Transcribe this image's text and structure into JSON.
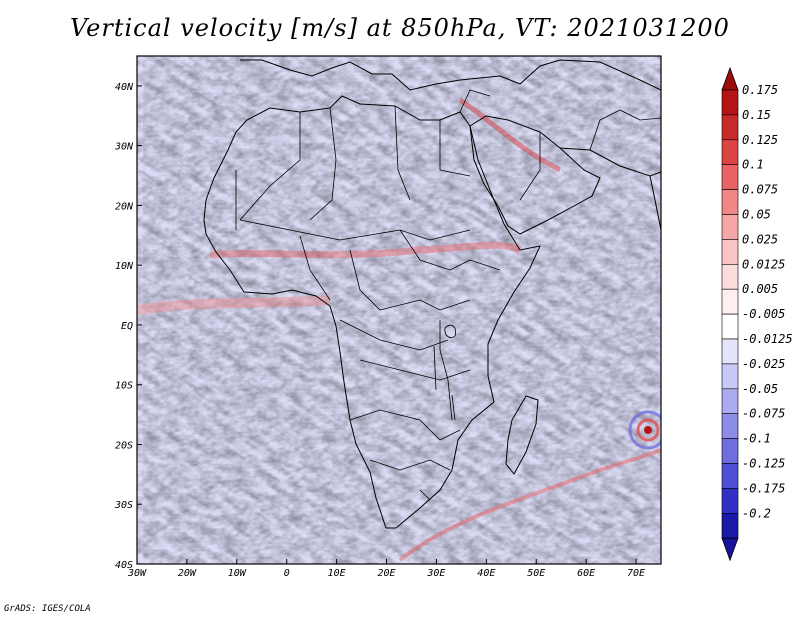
{
  "title": "Vertical velocity [m/s] at 850hPa, VT: 2021031200",
  "credit": "GrADS: IGES/COLA",
  "map": {
    "variable": "Vertical velocity",
    "units": "m/s",
    "level": "850hPa",
    "valid_time": "2021031200",
    "lon_range": [
      -30,
      75
    ],
    "lat_range": [
      -40,
      45
    ],
    "lon_ticks": [
      {
        "value": -30,
        "label": "30W"
      },
      {
        "value": -20,
        "label": "20W"
      },
      {
        "value": -10,
        "label": "10W"
      },
      {
        "value": 0,
        "label": "0"
      },
      {
        "value": 10,
        "label": "10E"
      },
      {
        "value": 20,
        "label": "20E"
      },
      {
        "value": 30,
        "label": "30E"
      },
      {
        "value": 40,
        "label": "40E"
      },
      {
        "value": 50,
        "label": "50E"
      },
      {
        "value": 60,
        "label": "60E"
      },
      {
        "value": 70,
        "label": "70E"
      }
    ],
    "lat_ticks": [
      {
        "value": 40,
        "label": "40N"
      },
      {
        "value": 30,
        "label": "30N"
      },
      {
        "value": 20,
        "label": "20N"
      },
      {
        "value": 10,
        "label": "10N"
      },
      {
        "value": 0,
        "label": "EQ"
      },
      {
        "value": -10,
        "label": "10S"
      },
      {
        "value": -20,
        "label": "20S"
      },
      {
        "value": -30,
        "label": "30S"
      },
      {
        "value": -40,
        "label": "40S"
      }
    ]
  },
  "colorbar": {
    "levels": [
      {
        "label": "0.175",
        "color": "#b31414"
      },
      {
        "label": "0.15",
        "color": "#c82a2a"
      },
      {
        "label": "0.125",
        "color": "#dc4444"
      },
      {
        "label": "0.1",
        "color": "#e86464"
      },
      {
        "label": "0.075",
        "color": "#f08686"
      },
      {
        "label": "0.05",
        "color": "#f6a6a6"
      },
      {
        "label": "0.025",
        "color": "#fac4c4"
      },
      {
        "label": "0.0125",
        "color": "#fddcdc"
      },
      {
        "label": "0.005",
        "color": "#fff0f0"
      },
      {
        "label": "-0.005",
        "color": "#ffffff"
      },
      {
        "label": "-0.0125",
        "color": "#e4e4fb"
      },
      {
        "label": "-0.025",
        "color": "#c8c8f6"
      },
      {
        "label": "-0.05",
        "color": "#ababf0"
      },
      {
        "label": "-0.075",
        "color": "#8d8de8"
      },
      {
        "label": "-0.1",
        "color": "#6e6edf"
      },
      {
        "label": "-0.125",
        "color": "#4f4fd4"
      },
      {
        "label": "-0.175",
        "color": "#3030c4"
      },
      {
        "label": "-0.2",
        "color": "#1a1aa8"
      }
    ],
    "top_arrow_color": "#9e0c0c",
    "bottom_arrow_color": "#14149a"
  }
}
